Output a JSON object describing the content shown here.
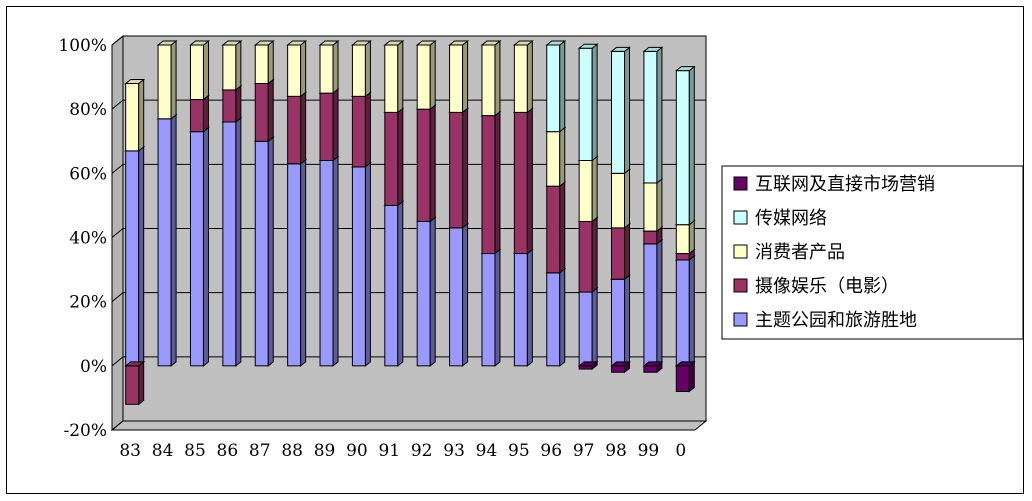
{
  "chart_data": {
    "type": "bar",
    "stacked": true,
    "percent": true,
    "three_d": true,
    "categories": [
      "83",
      "84",
      "85",
      "86",
      "87",
      "88",
      "89",
      "90",
      "91",
      "92",
      "93",
      "94",
      "95",
      "96",
      "97",
      "98",
      "99",
      "0"
    ],
    "ylim": [
      -20,
      100
    ],
    "yticks": [
      "-20%",
      "0%",
      "20%",
      "40%",
      "60%",
      "80%",
      "100%"
    ],
    "ytick_values": [
      -20,
      0,
      20,
      40,
      60,
      80,
      100
    ],
    "legend_position": "right",
    "series": [
      {
        "name": "主题公园和旅游胜地",
        "color": "#9999ff",
        "values": [
          67,
          77,
          73,
          76,
          70,
          63,
          64,
          62,
          50,
          45,
          43,
          35,
          35,
          29,
          23,
          27,
          38,
          33
        ]
      },
      {
        "name": "摄像娱乐（电影）",
        "color": "#993366",
        "values": [
          -12,
          0,
          10,
          10,
          18,
          21,
          21,
          22,
          29,
          35,
          36,
          43,
          44,
          27,
          22,
          16,
          4,
          2
        ]
      },
      {
        "name": "消费者产品",
        "color": "#ffffcc",
        "values": [
          21,
          23,
          17,
          14,
          12,
          16,
          15,
          16,
          21,
          20,
          21,
          22,
          21,
          17,
          19,
          17,
          15,
          9
        ]
      },
      {
        "name": "传媒网络",
        "color": "#ccffff",
        "values": [
          0,
          0,
          0,
          0,
          0,
          0,
          0,
          0,
          0,
          0,
          0,
          0,
          0,
          27,
          35,
          38,
          41,
          48
        ]
      },
      {
        "name": "互联网及直接市场营销",
        "color": "#660066",
        "values": [
          0,
          0,
          0,
          0,
          0,
          0,
          0,
          0,
          0,
          0,
          0,
          0,
          0,
          0,
          -1,
          -2,
          -2,
          -8
        ]
      }
    ]
  }
}
